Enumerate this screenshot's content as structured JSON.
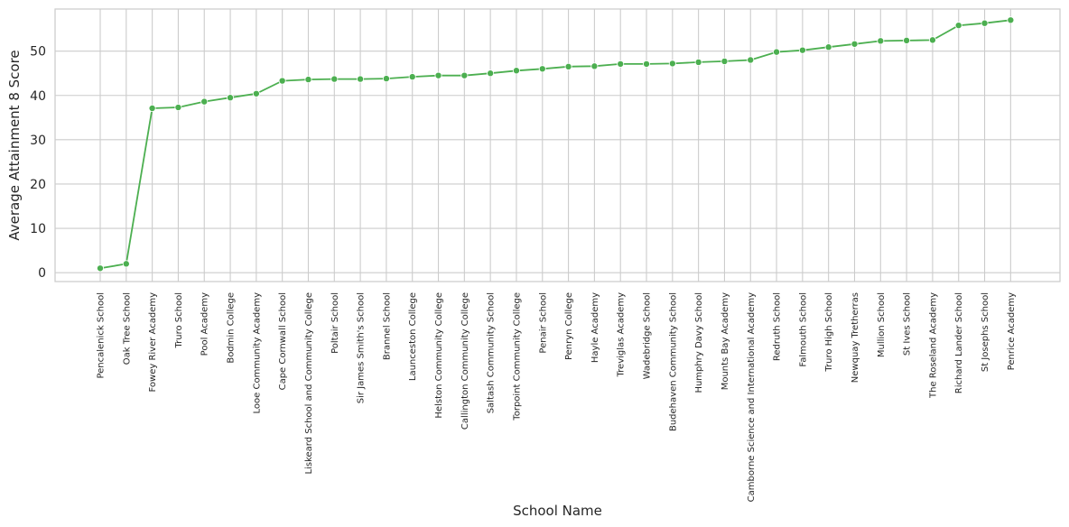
{
  "chart_data": {
    "type": "line",
    "title": "",
    "xlabel": "School Name",
    "ylabel": "Average Attainment 8 Score",
    "ylim": [
      -2,
      59.5
    ],
    "yticks": [
      0,
      10,
      20,
      30,
      40,
      50
    ],
    "grid": true,
    "line_color": "#4caf50",
    "grid_color": "#cccccc",
    "categories": [
      "Pencalenick School",
      "Oak Tree School",
      "Fowey River Academy",
      "Truro School",
      "Pool Academy",
      "Bodmin College",
      "Looe Community Academy",
      "Cape Cornwall School",
      "Liskeard School and Community College",
      "Poltair School",
      "Sir James Smith's School",
      "Brannel School",
      "Launceston College",
      "Helston Community College",
      "Callington Community College",
      "Saltash Community School",
      "Torpoint Community College",
      "Penair School",
      "Penryn College",
      "Hayle Academy",
      "Treviglas Academy",
      "Wadebridge School",
      "Budehaven Community School",
      "Humphry Davy School",
      "Mounts Bay Academy",
      "Camborne Science and International Academy",
      "Redruth School",
      "Falmouth School",
      "Truro High School",
      "Newquay Tretherras",
      "Mullion School",
      "St Ives School",
      "The Roseland Academy",
      "Richard Lander School",
      "St Josephs School",
      "Penrice Academy"
    ],
    "values": [
      1.0,
      2.0,
      37.1,
      37.3,
      38.6,
      39.5,
      40.4,
      43.3,
      43.6,
      43.7,
      43.7,
      43.8,
      44.2,
      44.5,
      44.5,
      45.0,
      45.6,
      46.0,
      46.5,
      46.6,
      47.1,
      47.1,
      47.2,
      47.5,
      47.7,
      48.0,
      49.8,
      50.2,
      50.9,
      51.6,
      52.3,
      52.4,
      52.5,
      55.8,
      56.3,
      57.0
    ]
  }
}
